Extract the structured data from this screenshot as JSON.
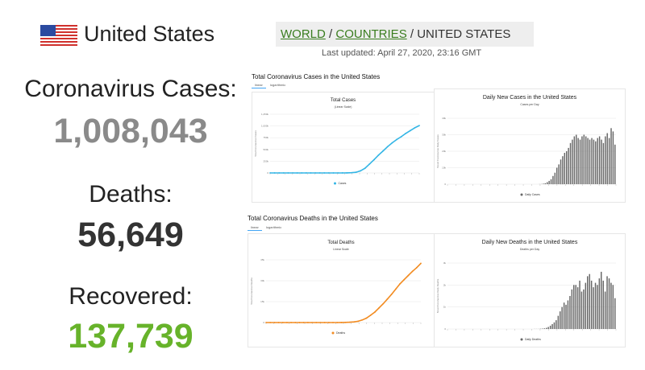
{
  "header": {
    "country": "United States",
    "breadcrumb": {
      "world": "WORLD",
      "sep1": " / ",
      "countries": "COUNTRIES",
      "sep2": " / ",
      "current": "UNITED STATES"
    },
    "last_updated": "Last updated: April 27, 2020, 23:16 GMT"
  },
  "stats": {
    "cases_label": "Coronavirus Cases:",
    "cases_value": "1,008,043",
    "deaths_label": "Deaths:",
    "deaths_value": "56,649",
    "recovered_label": "Recovered:",
    "recovered_value": "137,739"
  },
  "colors": {
    "cases_value": "#8a8a8a",
    "deaths_value": "#333333",
    "recovered_value": "#67b32a",
    "cases_line": "#33b5e5",
    "deaths_line": "#f28b20",
    "bars": "#666666",
    "link": "#3a7d1f"
  },
  "panels": {
    "total_cases": {
      "header": "Total Coronavirus Cases in the United States",
      "tab_linear": "linear",
      "tab_log": "logarithmic"
    },
    "total_deaths": {
      "header": "Total Coronavirus Deaths in the United States",
      "tab_linear": "linear",
      "tab_log": "logarithmic"
    }
  },
  "chart_data": [
    {
      "type": "line",
      "title": "Total Cases",
      "subtitle": "(Linear Scale)",
      "ylabel": "Total Coronavirus Cases",
      "yticks": [
        "0",
        "250k",
        "500k",
        "750k",
        "1,000k",
        "1,250k"
      ],
      "ylim": [
        0,
        1250000
      ],
      "legend": "Cases",
      "series": [
        {
          "name": "Cases",
          "values": [
            0,
            0,
            0,
            0,
            0,
            0,
            0,
            0,
            0,
            1,
            2,
            5,
            15,
            50,
            120,
            300,
            700,
            1600,
            4500,
            14000,
            44000,
            100000,
            190000,
            280000,
            380000,
            470000,
            560000,
            640000,
            710000,
            770000,
            840000,
            900000,
            960000,
            1008043
          ]
        }
      ]
    },
    {
      "type": "bar",
      "title": "Daily New Cases in the United States",
      "subtitle": "Cases per Day",
      "ylabel": "Novel Coronavirus Daily Cases",
      "yticks": [
        "0",
        "10k",
        "20k",
        "30k",
        "40k"
      ],
      "ylim": [
        0,
        40000
      ],
      "legend": "Daily Cases",
      "series": [
        {
          "name": "Daily Cases",
          "values": [
            0,
            0,
            0,
            0,
            0,
            0,
            0,
            0,
            0,
            0,
            0,
            0,
            0,
            0,
            0,
            0,
            0,
            0,
            0,
            0,
            0,
            0,
            0,
            0,
            0,
            0,
            0,
            0,
            0,
            0,
            0,
            0,
            0,
            0,
            0,
            0,
            0,
            0,
            0,
            0,
            0,
            0,
            0,
            0,
            2,
            5,
            20,
            60,
            120,
            300,
            600,
            1200,
            2000,
            3000,
            5000,
            7000,
            10000,
            12000,
            15000,
            17000,
            19000,
            20000,
            22000,
            25000,
            27000,
            29000,
            30000,
            28000,
            27000,
            29000,
            30000,
            29000,
            28000,
            27000,
            28000,
            27000,
            26000,
            28000,
            29000,
            27000,
            25000,
            29000,
            31000,
            28000,
            34000,
            32000,
            24000
          ]
        }
      ]
    },
    {
      "type": "line",
      "title": "Total Deaths",
      "subtitle": "Linear Scale",
      "ylabel": "Total Coronavirus Deaths",
      "yticks": [
        "0",
        "15k",
        "30k",
        "45k"
      ],
      "ylim": [
        0,
        60000
      ],
      "legend": "Deaths",
      "series": [
        {
          "name": "Deaths",
          "values": [
            0,
            0,
            0,
            0,
            0,
            0,
            0,
            0,
            0,
            0,
            0,
            0,
            0,
            0,
            0,
            0,
            0,
            1,
            50,
            150,
            300,
            600,
            1200,
            2500,
            4200,
            7000,
            10000,
            14000,
            18000,
            22500,
            27000,
            32000,
            37000,
            41000,
            45000,
            49000,
            52500,
            56649
          ]
        }
      ]
    },
    {
      "type": "bar",
      "title": "Daily New Deaths in the United States",
      "subtitle": "Deaths per Day",
      "ylabel": "Novel Coronavirus Daily Deaths",
      "yticks": [
        "0",
        "1k",
        "2k",
        "3k"
      ],
      "ylim": [
        0,
        3000
      ],
      "legend": "Daily Deaths",
      "series": [
        {
          "name": "Daily Deaths",
          "values": [
            0,
            0,
            0,
            0,
            0,
            0,
            0,
            0,
            0,
            0,
            0,
            0,
            0,
            0,
            0,
            0,
            0,
            0,
            0,
            0,
            0,
            0,
            0,
            0,
            0,
            0,
            0,
            0,
            0,
            0,
            0,
            0,
            0,
            0,
            0,
            0,
            0,
            0,
            0,
            0,
            0,
            0,
            0,
            1,
            2,
            3,
            5,
            10,
            20,
            30,
            50,
            90,
            150,
            220,
            300,
            400,
            600,
            800,
            1000,
            1200,
            1100,
            1300,
            1500,
            1800,
            2000,
            2000,
            1900,
            2200,
            1700,
            1800,
            2100,
            2400,
            2500,
            2200,
            1900,
            2100,
            2000,
            2300,
            2600,
            2200,
            1700,
            2400,
            2300,
            2100,
            2000,
            1400
          ]
        }
      ]
    }
  ]
}
